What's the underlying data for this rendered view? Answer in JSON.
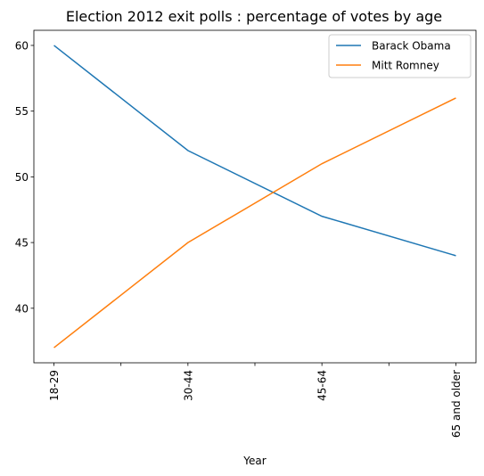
{
  "chart_data": {
    "type": "line",
    "title": "Election 2012 exit polls : percentage of votes by age",
    "xlabel": "Year",
    "ylabel": "",
    "categories": [
      "18-29",
      "30-44",
      "45-64",
      "65 and older"
    ],
    "series": [
      {
        "name": "Barack Obama",
        "color": "#1f77b4",
        "values": [
          60,
          52,
          47,
          44
        ]
      },
      {
        "name": "Mitt Romney",
        "color": "#ff7f0e",
        "values": [
          37,
          45,
          51,
          56
        ]
      }
    ],
    "ylim": [
      35.85,
      61.15
    ],
    "yticks": [
      40,
      45,
      50,
      55,
      60
    ],
    "minor_x_ticks": [
      0.5,
      1.5,
      2.5
    ],
    "xlim": [
      -0.15,
      3.15
    ],
    "grid": false,
    "legend": "top-right"
  }
}
